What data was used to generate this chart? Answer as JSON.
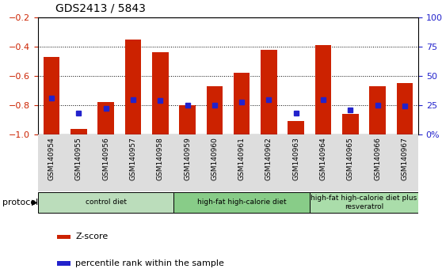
{
  "title": "GDS2413 / 5843",
  "samples": [
    "GSM140954",
    "GSM140955",
    "GSM140956",
    "GSM140957",
    "GSM140958",
    "GSM140959",
    "GSM140960",
    "GSM140961",
    "GSM140962",
    "GSM140963",
    "GSM140964",
    "GSM140965",
    "GSM140966",
    "GSM140967"
  ],
  "zscore": [
    -0.47,
    -0.96,
    -0.78,
    -0.35,
    -0.44,
    -0.8,
    -0.67,
    -0.58,
    -0.42,
    -0.91,
    -0.39,
    -0.86,
    -0.67,
    -0.65
  ],
  "percentile": [
    31,
    18,
    22,
    30,
    29,
    25,
    25,
    28,
    30,
    18,
    30,
    21,
    25,
    24
  ],
  "ylim_left": [
    -1.0,
    -0.2
  ],
  "ylim_right": [
    0,
    100
  ],
  "yticks_left": [
    -1.0,
    -0.8,
    -0.6,
    -0.4,
    -0.2
  ],
  "yticks_right": [
    0,
    25,
    50,
    75,
    100
  ],
  "ytick_labels_right": [
    "0%",
    "25",
    "50",
    "75",
    "100%"
  ],
  "grid_vals": [
    -0.4,
    -0.6,
    -0.8
  ],
  "bar_color": "#CC2200",
  "dot_color": "#2222CC",
  "protocol_groups": [
    {
      "label": "control diet",
      "start": 0,
      "end": 4,
      "color": "#BBDDBB"
    },
    {
      "label": "high-fat high-calorie diet",
      "start": 5,
      "end": 9,
      "color": "#88CC88"
    },
    {
      "label": "high-fat high-calorie diet plus\nresveratrol",
      "start": 10,
      "end": 13,
      "color": "#AADDAA"
    }
  ],
  "protocol_label": "protocol",
  "legend_zscore": "Z-score",
  "legend_percentile": "percentile rank within the sample",
  "tick_label_color_left": "#CC2200",
  "tick_label_color_right": "#2222CC",
  "xtick_bg_color": "#DDDDDD"
}
